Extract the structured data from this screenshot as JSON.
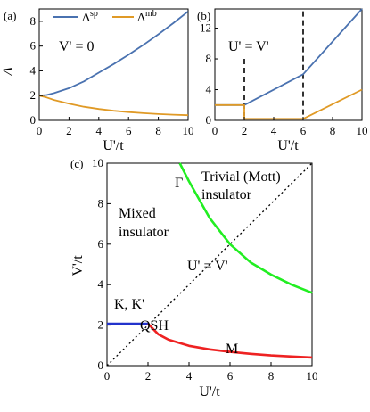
{
  "chart_data": [
    {
      "panel": "(a)",
      "type": "line",
      "xlabel": "U'/t",
      "ylabel": "Δ",
      "xlim": [
        0,
        10
      ],
      "ylim": [
        0,
        9
      ],
      "xticks": [
        "0",
        "2",
        "4",
        "6",
        "8",
        "10"
      ],
      "yticks": [
        "0",
        "2",
        "4",
        "6",
        "8"
      ],
      "annotations": [
        "V' = 0"
      ],
      "legend": "top",
      "series": [
        {
          "name": "Δ",
          "sup": "sp",
          "color": "#4a72b0",
          "x": [
            0,
            0.5,
            1,
            2,
            3,
            4,
            5,
            6,
            7,
            8,
            9,
            10
          ],
          "y": [
            2.0,
            2.05,
            2.2,
            2.6,
            3.15,
            3.85,
            4.55,
            5.3,
            6.1,
            6.95,
            7.85,
            8.8
          ]
        },
        {
          "name": "Δ",
          "sup": "mb",
          "color": "#e09a26",
          "x": [
            0,
            0.5,
            1,
            2,
            3,
            4,
            5,
            6,
            7,
            8,
            9,
            10
          ],
          "y": [
            2.0,
            1.85,
            1.65,
            1.35,
            1.1,
            0.92,
            0.78,
            0.67,
            0.58,
            0.51,
            0.46,
            0.42
          ]
        }
      ]
    },
    {
      "panel": "(b)",
      "type": "line",
      "xlabel": "U'/t",
      "xlim": [
        0,
        10
      ],
      "ylim": [
        0,
        14.5
      ],
      "xticks": [
        "0",
        "2",
        "4",
        "6",
        "8",
        "10"
      ],
      "yticks": [
        "0",
        "4",
        "8",
        "12"
      ],
      "annotations": [
        "U' = V'"
      ],
      "dashed_lines_x": [
        2,
        6
      ],
      "series": [
        {
          "name": "Δsp",
          "color": "#4a72b0",
          "x": [
            0,
            2,
            6,
            10
          ],
          "y": [
            2.0,
            2.0,
            6.0,
            14.5
          ]
        },
        {
          "name": "Δmb",
          "color": "#e09a26",
          "x": [
            0,
            2,
            2,
            6,
            6,
            10
          ],
          "y": [
            2.0,
            2.0,
            0.2,
            0.2,
            0.2,
            4.0
          ]
        }
      ]
    },
    {
      "panel": "(c)",
      "type": "line",
      "xlabel": "U'/t",
      "ylabel": "V'/t",
      "xlim": [
        0,
        10
      ],
      "ylim": [
        0,
        10
      ],
      "xticks": [
        "0",
        "2",
        "4",
        "6",
        "8",
        "10"
      ],
      "yticks": [
        "0",
        "2",
        "4",
        "6",
        "8",
        "10"
      ],
      "regions": [
        "Mixed",
        "insulator",
        "Trivial (Mott)",
        "insulator",
        "QSH"
      ],
      "annotations": [
        "U' = V'"
      ],
      "curve_labels": [
        "Γ",
        "K, K'",
        "M"
      ],
      "series": [
        {
          "name": "Γ",
          "color": "#22ee22",
          "x": [
            3.55,
            4,
            5,
            6,
            7,
            8,
            9,
            10
          ],
          "y": [
            10,
            9.1,
            7.3,
            6.0,
            5.1,
            4.5,
            4.0,
            3.6
          ]
        },
        {
          "name": "K, K'",
          "color": "#2233cc",
          "x": [
            0,
            2
          ],
          "y": [
            2.07,
            2.07
          ]
        },
        {
          "name": "M",
          "color": "#ee2222",
          "x": [
            2,
            2.5,
            3,
            4,
            5,
            6,
            7,
            8,
            9,
            10
          ],
          "y": [
            2.07,
            1.55,
            1.28,
            0.98,
            0.8,
            0.68,
            0.58,
            0.5,
            0.45,
            0.4
          ]
        },
        {
          "name": "U' = V'",
          "color": "#000000",
          "dashed": true,
          "x": [
            0,
            10
          ],
          "y": [
            0,
            10
          ]
        }
      ]
    }
  ]
}
